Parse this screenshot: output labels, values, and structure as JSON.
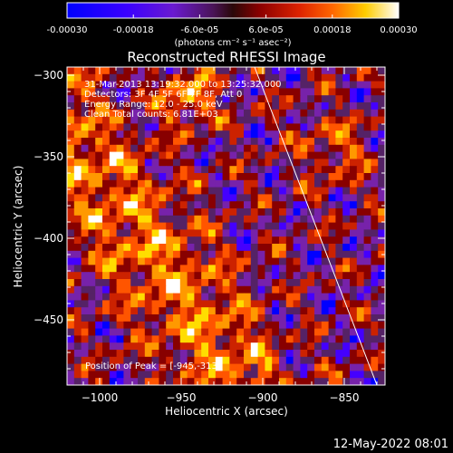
{
  "colorbar": {
    "tick_labels": [
      "-0.00030",
      "-0.00018",
      "-6.0e-05",
      "6.0e-05",
      "0.00018",
      "0.00030"
    ],
    "min": -0.0003,
    "max": 0.0003,
    "units_label": "(photons cm⁻² s⁻¹ asec⁻²)"
  },
  "chart_data": {
    "type": "heatmap",
    "title": "Reconstructed RHESSI Image",
    "xlabel": "Heliocentric X (arcsec)",
    "ylabel": "Heliocentric Y (arcsec)",
    "xlim": [
      -1020,
      -825
    ],
    "ylim": [
      -490,
      -295
    ],
    "x_ticks": [
      -1000,
      -950,
      -900,
      -850
    ],
    "y_ticks": [
      -450,
      -400,
      -350,
      -300
    ],
    "x_tick_labels": [
      "−1000",
      "−950",
      "−900",
      "−850"
    ],
    "y_tick_labels": [
      "−450",
      "−400",
      "−350",
      "−300"
    ],
    "annotations": [
      "31-Mar-2013 13:19:32.000 to 13:25:32.000",
      "Detectors: 3F 4F 5F 6F 7F 8F, Att 0",
      "Energy Range: 12.0 - 25.0 keV",
      "Clean    Total counts: 6.81E+03"
    ],
    "peak_label": "Position of Peak = [-945,-313]",
    "peak": [
      -945,
      -313
    ],
    "limb_line": [
      [
        -905,
        -295
      ],
      [
        -830,
        -490
      ]
    ],
    "colors": {
      "scale": [
        "#0000ff",
        "#4400ff",
        "#7722aa",
        "#552266",
        "#880000",
        "#cc2200",
        "#ff5500",
        "#ff9900",
        "#ffdd00",
        "#ffffff"
      ]
    }
  },
  "footer": {
    "date": "12-May-2022 08:01"
  }
}
